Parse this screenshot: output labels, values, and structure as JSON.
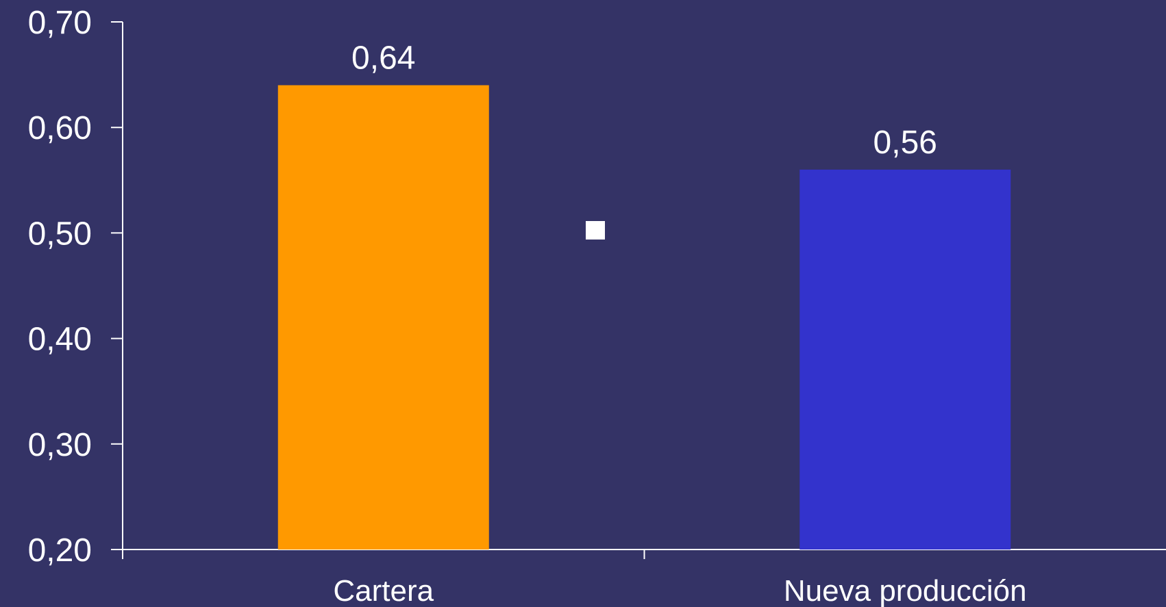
{
  "chart_data": {
    "type": "bar",
    "categories": [
      "Cartera",
      "Nueva producción"
    ],
    "values": [
      0.64,
      0.56
    ],
    "value_labels": [
      "0,64",
      "0,56"
    ],
    "colors": [
      "#FF9900",
      "#3333CC"
    ],
    "ylim": [
      0.2,
      0.7
    ],
    "yticks": [
      0.2,
      0.3,
      0.4,
      0.5,
      0.6,
      0.7
    ],
    "ytick_labels": [
      "0,20",
      "0,30",
      "0,40",
      "0,50",
      "0,60",
      "0,70"
    ],
    "grid": false,
    "legend_marker_color": "#FFFFFF",
    "background": "#343366",
    "title": "",
    "xlabel": "",
    "ylabel": ""
  }
}
